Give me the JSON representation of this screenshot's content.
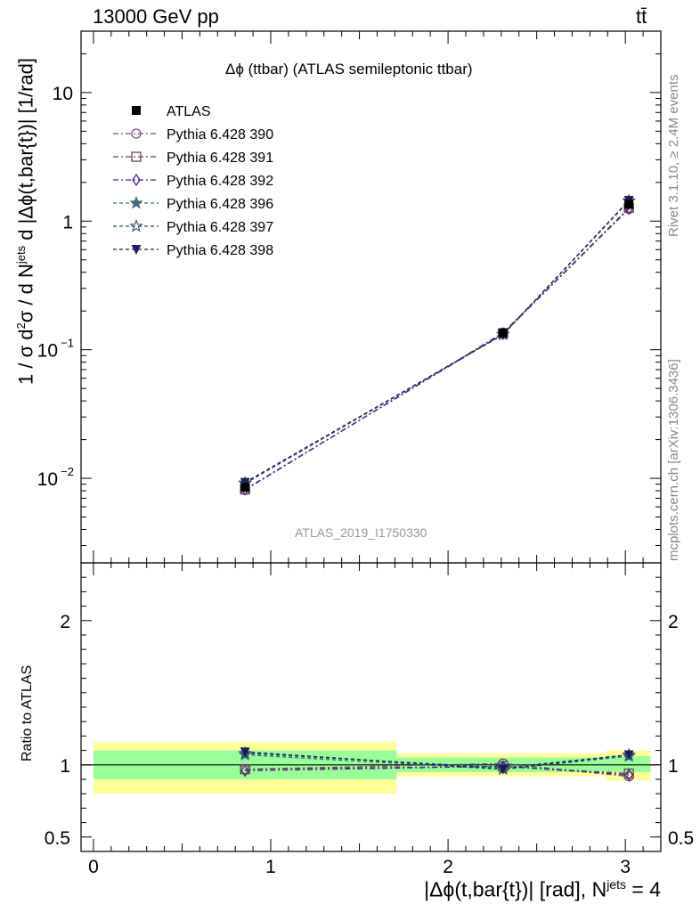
{
  "header": {
    "left": "13000 GeV pp",
    "right": "tt̄"
  },
  "side_labels": {
    "rivet": "Rivet 3.1.10, ≥ 2.4M events",
    "mcplots": "mcplots.cern.ch [arXiv:1306.3436]"
  },
  "plot_title": "Δϕ (ttbar) (ATLAS semileptonic ttbar)",
  "watermark": "ATLAS_2019_I1750330",
  "y_label_main": {
    "prefix": "1 / σ d",
    "sup1": "2",
    "mid": "σ / d N",
    "sup2": "jets",
    "suffix": " d |Δϕ(t,bar{t})| [1/rad]"
  },
  "y_label_ratio": "Ratio to ATLAS",
  "x_label": {
    "prefix": "|Δϕ(t,bar{t})| [rad], N",
    "sup": "jets",
    "suffix": " = 4"
  },
  "colors": {
    "band_outer": "#ffff99",
    "band_inner": "#99ff99",
    "data": "#000000"
  },
  "chart_data": [
    {
      "type": "scatter",
      "panel": "main",
      "y_scale": "log",
      "xlim": [
        -0.07,
        3.2
      ],
      "ylim": [
        0.0022,
        30
      ],
      "y_ticks": [
        {
          "value": 0.01,
          "base": "10",
          "exp": "−2"
        },
        {
          "value": 0.1,
          "base": "10",
          "exp": "−1"
        },
        {
          "value": 1,
          "base": "1",
          "exp": ""
        },
        {
          "value": 10,
          "base": "10",
          "exp": ""
        }
      ],
      "x_ticks": [
        0,
        1,
        2,
        3
      ],
      "x_tick_labels": [
        "0",
        "1",
        "2",
        "3"
      ],
      "x": [
        0.855,
        2.31,
        3.02
      ],
      "bin_edges": [
        0,
        1.71,
        2.89,
        3.1416
      ],
      "data": {
        "name": "ATLAS",
        "values": [
          0.0085,
          0.135,
          1.35
        ]
      },
      "series": [
        {
          "name": "Pythia 6.428 390",
          "color": "#7a4a86",
          "marker": "circle-open",
          "dash": "6,3,2,3",
          "values": [
            0.0081,
            0.136,
            1.24
          ]
        },
        {
          "name": "Pythia 6.428 391",
          "color": "#6e3e4e",
          "marker": "square-open",
          "dash": "6,3,2,3",
          "values": [
            0.0082,
            0.134,
            1.27
          ]
        },
        {
          "name": "Pythia 6.428 392",
          "color": "#4a2a86",
          "marker": "diamond-open",
          "dash": "6,3,2,3",
          "values": [
            0.0082,
            0.133,
            1.25
          ]
        },
        {
          "name": "Pythia 6.428 396",
          "color": "#3e6a7e",
          "marker": "star-filled",
          "dash": "4,3",
          "values": [
            0.0091,
            0.131,
            1.43
          ]
        },
        {
          "name": "Pythia 6.428 397",
          "color": "#2e4e6e",
          "marker": "star-open",
          "dash": "4,3",
          "values": [
            0.0092,
            0.132,
            1.44
          ]
        },
        {
          "name": "Pythia 6.428 398",
          "color": "#1e1e5a",
          "marker": "triangle-down-filled",
          "dash": "4,3",
          "values": [
            0.0093,
            0.131,
            1.45
          ]
        }
      ]
    },
    {
      "type": "scatter",
      "panel": "ratio",
      "ylim": [
        0.4,
        2.4
      ],
      "y_ticks": [
        0.5,
        1,
        2
      ],
      "y_tick_labels": [
        "0.5",
        "1",
        "2"
      ],
      "x_ticks": [
        0,
        1,
        2,
        3
      ],
      "x_tick_labels": [
        "0",
        "1",
        "2",
        "3"
      ],
      "x": [
        0.855,
        2.31,
        3.02
      ],
      "band_inner": [
        [
          0.9,
          1.1
        ],
        [
          0.95,
          1.05
        ],
        [
          0.95,
          1.06
        ]
      ],
      "band_outer": [
        [
          0.8,
          1.16
        ],
        [
          0.92,
          1.08
        ],
        [
          0.89,
          1.1
        ]
      ],
      "series": [
        {
          "name": "Pythia 6.428 390",
          "values": [
            0.97,
            1.01,
            0.92
          ]
        },
        {
          "name": "Pythia 6.428 391",
          "values": [
            0.97,
            0.99,
            0.94
          ]
        },
        {
          "name": "Pythia 6.428 392",
          "values": [
            0.96,
            0.99,
            0.93
          ]
        },
        {
          "name": "Pythia 6.428 396",
          "values": [
            1.07,
            0.97,
            1.06
          ]
        },
        {
          "name": "Pythia 6.428 397",
          "values": [
            1.08,
            0.98,
            1.07
          ]
        },
        {
          "name": "Pythia 6.428 398",
          "values": [
            1.09,
            0.97,
            1.07
          ]
        }
      ]
    }
  ]
}
